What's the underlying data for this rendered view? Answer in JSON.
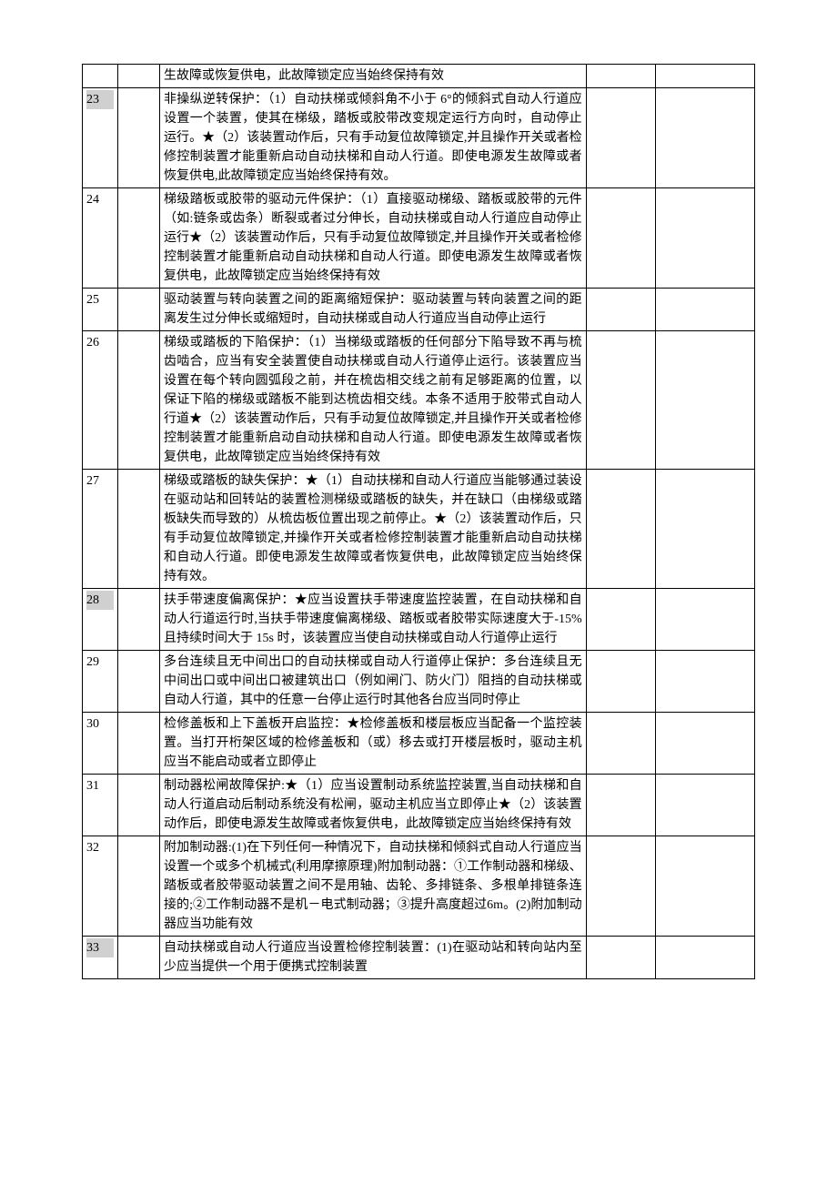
{
  "table": {
    "rows": [
      {
        "num": "",
        "highlighted": false,
        "desc": "生故障或恢复供电，此故障锁定应当始终保持有效"
      },
      {
        "num": "23",
        "highlighted": true,
        "desc": "非操纵逆转保护：（1）自动扶梯或倾斜角不小于 6°的倾斜式自动人行道应设置一个装置，使其在梯级，踏板或胶带改变规定运行方向时，自动停止运行。★（2）该装置动作后，只有手动复位故障锁定,并且操作开关或者检修控制装置才能重新启动自动扶梯和自动人行道。即使电源发生故障或者恢复供电,此故障锁定应当始终保持有效。"
      },
      {
        "num": "24",
        "highlighted": false,
        "desc": "梯级踏板或胶带的驱动元件保护：（1）直接驱动梯级、踏板或胶带的元件（如:链条或齿条）断裂或者过分伸长，自动扶梯或自动人行道应自动停止运行★（2）该装置动作后，只有手动复位故障锁定,并且操作开关或者检修控制装置才能重新启动自动扶梯和自动人行道。即使电源发生故障或者恢复供电，此故障锁定应当始终保持有效"
      },
      {
        "num": "25",
        "highlighted": false,
        "desc": "驱动装置与转向装置之间的距离缩短保护：驱动装置与转向装置之间的距离发生过分伸长或缩短时，自动扶梯或自动人行道应当自动停止运行"
      },
      {
        "num": "26",
        "highlighted": false,
        "desc": "梯级或踏板的下陷保护：（1）当梯级或踏板的任何部分下陷导致不再与梳齿啮合，应当有安全装置使自动扶梯或自动人行道停止运行。该装置应当设置在每个转向圆弧段之前，并在梳齿相交线之前有足够距离的位置，以保证下陷的梯级或踏板不能到达梳齿相交线。本条不适用于胶带式自动人行道★（2）该装置动作后，只有手动复位故障锁定,并且操作开关或者检修控制装置才能重新启动自动扶梯和自动人行道。即使电源发生故障或者恢复供电，此故障锁定应当始终保持有效"
      },
      {
        "num": "27",
        "highlighted": false,
        "desc": "梯级或踏板的缺失保护：★（1）自动扶梯和自动人行道应当能够通过装设在驱动站和回转站的装置检测梯级或踏板的缺失，并在缺口（由梯级或踏板缺失而导致的）从梳齿板位置出现之前停止。★（2）该装置动作后，只有手动复位故障锁定,并操作开关或者检修控制装置才能重新启动自动扶梯和自动人行道。即使电源发生故障或者恢复供电，此故障锁定应当始终保持有效。"
      },
      {
        "num": "28",
        "highlighted": true,
        "desc": "扶手带速度偏离保护：★应当设置扶手带速度监控装置，在自动扶梯和自动人行道运行时,当扶手带速度偏离梯级、踏板或者胶带实际速度大于-15%且持续时间大于 15s 时，该装置应当使自动扶梯或自动人行道停止运行"
      },
      {
        "num": "29",
        "highlighted": false,
        "desc": "多台连续且无中间出口的自动扶梯或自动人行道停止保护：多台连续且无中间出口或中间出口被建筑出口（例如闸门、防火门）阻挡的自动扶梯或自动人行道，其中的任意一台停止运行时其他各台应当同时停止"
      },
      {
        "num": "30",
        "highlighted": false,
        "desc": "检修盖板和上下盖板开启监控：★检修盖板和楼层板应当配备一个监控装置。当打开桁架区域的检修盖板和（或）移去或打开楼层板时，驱动主机应当不能启动或者立即停止"
      },
      {
        "num": "31",
        "highlighted": false,
        "desc": "制动器松闸故障保护:★（1）应当设置制动系统监控装置,当自动扶梯和自动人行道启动后制动系统没有松闸，驱动主机应当立即停止★（2）该装置动作后，即使电源发生故障或者恢复供电，此故障锁定应当始终保持有效"
      },
      {
        "num": "32",
        "highlighted": false,
        "desc": "附加制动器:(1)在下列任何一种情况下，自动扶梯和倾斜式自动人行道应当设置一个或多个机械式(利用摩擦原理)附加制动器：①工作制动器和梯级、踏板或者胶带驱动装置之间不是用轴、齿轮、多排链条、多根单排链条连接的;②工作制动器不是机－电式制动器；③提升高度超过6m。(2)附加制动器应当功能有效"
      },
      {
        "num": "33",
        "highlighted": true,
        "desc": "自动扶梯或自动人行道应当设置检修控制装置：(1)在驱动站和转向站内至少应当提供一个用于便携式控制装置"
      }
    ]
  }
}
